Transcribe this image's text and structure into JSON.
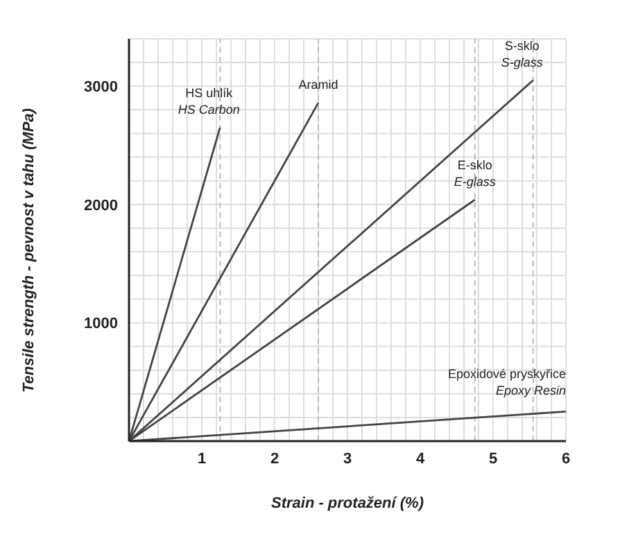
{
  "chart_data": {
    "type": "line",
    "xlabel": "Strain - protažení (%)",
    "ylabel": "Tensile strength - pevnost v tahu (MPa)",
    "xlim": [
      0,
      6
    ],
    "ylim": [
      0,
      3400
    ],
    "xticks": [
      {
        "value": 0,
        "label": null
      },
      {
        "value": 0.2,
        "label": null
      },
      {
        "value": 0.4,
        "label": null
      },
      {
        "value": 0.6,
        "label": null
      },
      {
        "value": 0.8,
        "label": null
      },
      1,
      {
        "value": 1.2,
        "label": null
      },
      {
        "value": 1.4,
        "label": null
      },
      {
        "value": 1.6,
        "label": null
      },
      {
        "value": 1.8,
        "label": null
      },
      2,
      {
        "value": 2.2,
        "label": null
      },
      {
        "value": 2.4,
        "label": null
      },
      {
        "value": 2.6,
        "label": null
      },
      {
        "value": 2.8,
        "label": null
      },
      3,
      {
        "value": 3.2,
        "label": null
      },
      {
        "value": 3.4,
        "label": null
      },
      {
        "value": 3.6,
        "label": null
      },
      {
        "value": 3.8,
        "label": null
      },
      4,
      {
        "value": 4.2,
        "label": null
      },
      {
        "value": 4.4,
        "label": null
      },
      {
        "value": 4.6,
        "label": null
      },
      {
        "value": 4.8,
        "label": null
      },
      5,
      {
        "value": 5.2,
        "label": null
      },
      {
        "value": 5.4,
        "label": null
      },
      {
        "value": 5.6,
        "label": null
      },
      {
        "value": 5.8,
        "label": null
      },
      6
    ],
    "yticks": [
      {
        "value": 0,
        "label": null
      },
      {
        "value": 200,
        "label": null
      },
      {
        "value": 400,
        "label": null
      },
      {
        "value": 600,
        "label": null
      },
      {
        "value": 800,
        "label": null
      },
      1000,
      {
        "value": 1200,
        "label": null
      },
      {
        "value": 1400,
        "label": null
      },
      {
        "value": 1600,
        "label": null
      },
      {
        "value": 1800,
        "label": null
      },
      2000,
      {
        "value": 2200,
        "label": null
      },
      {
        "value": 2400,
        "label": null
      },
      {
        "value": 2600,
        "label": null
      },
      {
        "value": 2800,
        "label": null
      },
      3000,
      {
        "value": 3200,
        "label": null
      },
      {
        "value": 3400,
        "label": null
      }
    ],
    "grid": true,
    "legend": false,
    "marker": "none",
    "line_style": "solid",
    "series": [
      {
        "name": "HS uhlík\nHS Carbon",
        "color": "#444444",
        "x": [
          0,
          1.25
        ],
        "values": [
          0,
          2650
        ]
      },
      {
        "name": "Aramid",
        "color": "#444444",
        "x": [
          0,
          2.6
        ],
        "values": [
          0,
          2860
        ]
      },
      {
        "name": "S-sklo\nS-glass",
        "color": "#444444",
        "x": [
          0,
          5.55
        ],
        "values": [
          0,
          3050
        ]
      },
      {
        "name": "E-sklo\nE-glass",
        "color": "#444444",
        "x": [
          0,
          4.75
        ],
        "values": [
          0,
          2040
        ]
      },
      {
        "name": "Epoxidové pryskyřice\nEpoxy Resin",
        "color": "#444444",
        "x": [
          0,
          6
        ],
        "values": [
          0,
          250
        ]
      }
    ],
    "ref_lines": [
      {
        "axis": "x",
        "value": 1.25,
        "line_style": "dashed",
        "color": "#bbbbbb"
      },
      {
        "axis": "x",
        "value": 2.6,
        "line_style": "dashed",
        "color": "#bbbbbb"
      },
      {
        "axis": "x",
        "value": 4.75,
        "line_style": "dashed",
        "color": "#bbbbbb"
      },
      {
        "axis": "x",
        "value": 5.55,
        "line_style": "dashed",
        "color": "#bbbbbb"
      }
    ]
  }
}
